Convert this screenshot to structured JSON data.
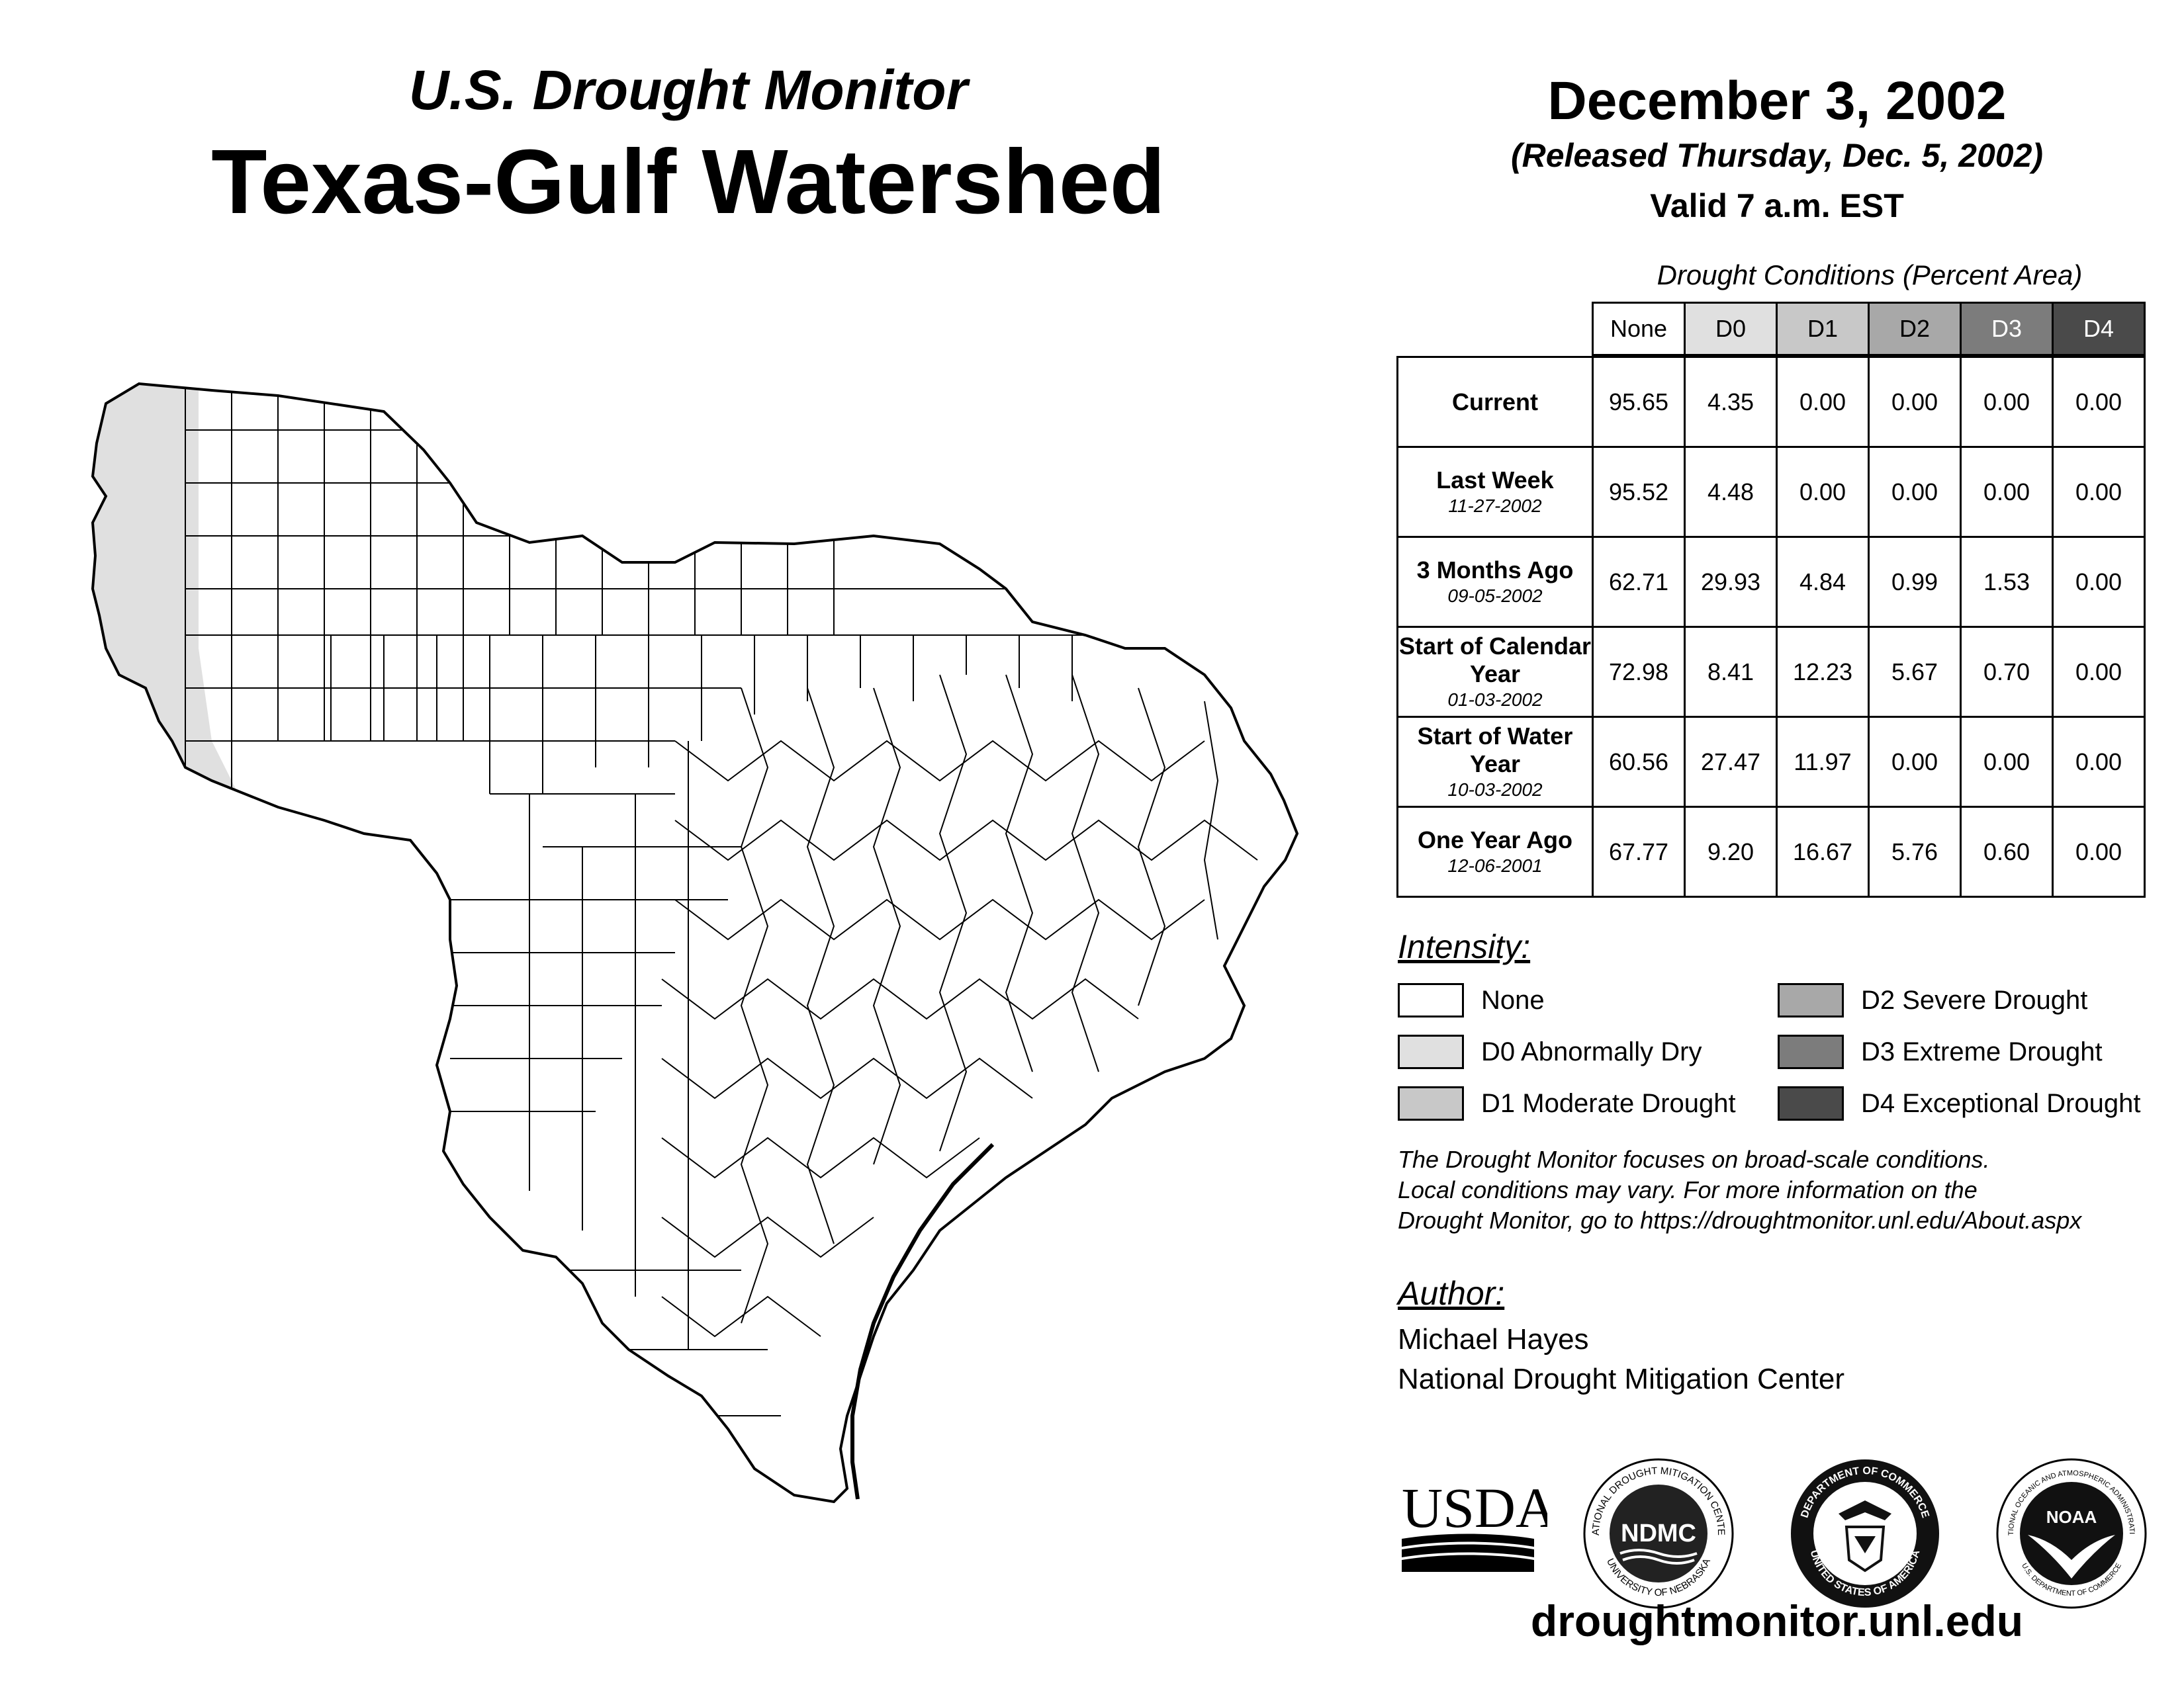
{
  "header": {
    "subtitle": "U.S. Drought Monitor",
    "title": "Texas-Gulf Watershed",
    "date": "December 3, 2002",
    "released": "(Released Thursday, Dec. 5, 2002)",
    "valid": "Valid 7 a.m. EST"
  },
  "table": {
    "caption": "Drought Conditions (Percent Area)",
    "columns": [
      "None",
      "D0",
      "D1",
      "D2",
      "D3",
      "D4"
    ],
    "column_colors": [
      "#ffffff",
      "#e0e0e0",
      "#c8c8c8",
      "#a8a8a8",
      "#7c7c7c",
      "#4a4a4a"
    ],
    "rows": [
      {
        "label": "Current",
        "date": "",
        "values": [
          "95.65",
          "4.35",
          "0.00",
          "0.00",
          "0.00",
          "0.00"
        ]
      },
      {
        "label": "Last Week",
        "date": "11-27-2002",
        "values": [
          "95.52",
          "4.48",
          "0.00",
          "0.00",
          "0.00",
          "0.00"
        ]
      },
      {
        "label": "3 Months Ago",
        "date": "09-05-2002",
        "values": [
          "62.71",
          "29.93",
          "4.84",
          "0.99",
          "1.53",
          "0.00"
        ]
      },
      {
        "label": "Start of Calendar Year",
        "date": "01-03-2002",
        "values": [
          "72.98",
          "8.41",
          "12.23",
          "5.67",
          "0.70",
          "0.00"
        ]
      },
      {
        "label": "Start of Water Year",
        "date": "10-03-2002",
        "values": [
          "60.56",
          "27.47",
          "11.97",
          "0.00",
          "0.00",
          "0.00"
        ]
      },
      {
        "label": "One Year Ago",
        "date": "12-06-2001",
        "values": [
          "67.77",
          "9.20",
          "16.67",
          "5.76",
          "0.60",
          "0.00"
        ]
      }
    ]
  },
  "legend": {
    "heading": "Intensity:",
    "items": [
      {
        "label": "None",
        "color": "#ffffff"
      },
      {
        "label": "D0 Abnormally Dry",
        "color": "#e0e0e0"
      },
      {
        "label": "D1 Moderate Drought",
        "color": "#c8c8c8"
      },
      {
        "label": "D2 Severe Drought",
        "color": "#a8a8a8"
      },
      {
        "label": "D3 Extreme Drought",
        "color": "#7c7c7c"
      },
      {
        "label": "D4 Exceptional Drought",
        "color": "#4a4a4a"
      }
    ]
  },
  "note": {
    "line1": "The Drought Monitor focuses on broad-scale conditions.",
    "line2": "Local conditions may vary. For more information on the",
    "line3": "Drought Monitor, go to https://droughtmonitor.unl.edu/About.aspx"
  },
  "author": {
    "heading": "Author:",
    "name": "Michael Hayes",
    "org": "National Drought Mitigation Center"
  },
  "logos": {
    "usda": "USDA",
    "ndmc": "NDMC",
    "ndmc_ring_top": "NATIONAL DROUGHT MITIGATION CENTER",
    "ndmc_ring_bottom": "UNIVERSITY OF NEBRASKA",
    "doc_ring_top": "DEPARTMENT OF COMMERCE",
    "doc_ring_bottom": "UNITED STATES OF AMERICA",
    "noaa": "NOAA",
    "noaa_ring_top": "NATIONAL OCEANIC AND ATMOSPHERIC ADMINISTRATION",
    "noaa_ring_bottom": "U.S. DEPARTMENT OF COMMERCE"
  },
  "footer": {
    "url": "droughtmonitor.unl.edu"
  },
  "icons": [
    "usda-logo-icon",
    "ndmc-logo-icon",
    "commerce-seal-icon",
    "noaa-logo-icon"
  ]
}
